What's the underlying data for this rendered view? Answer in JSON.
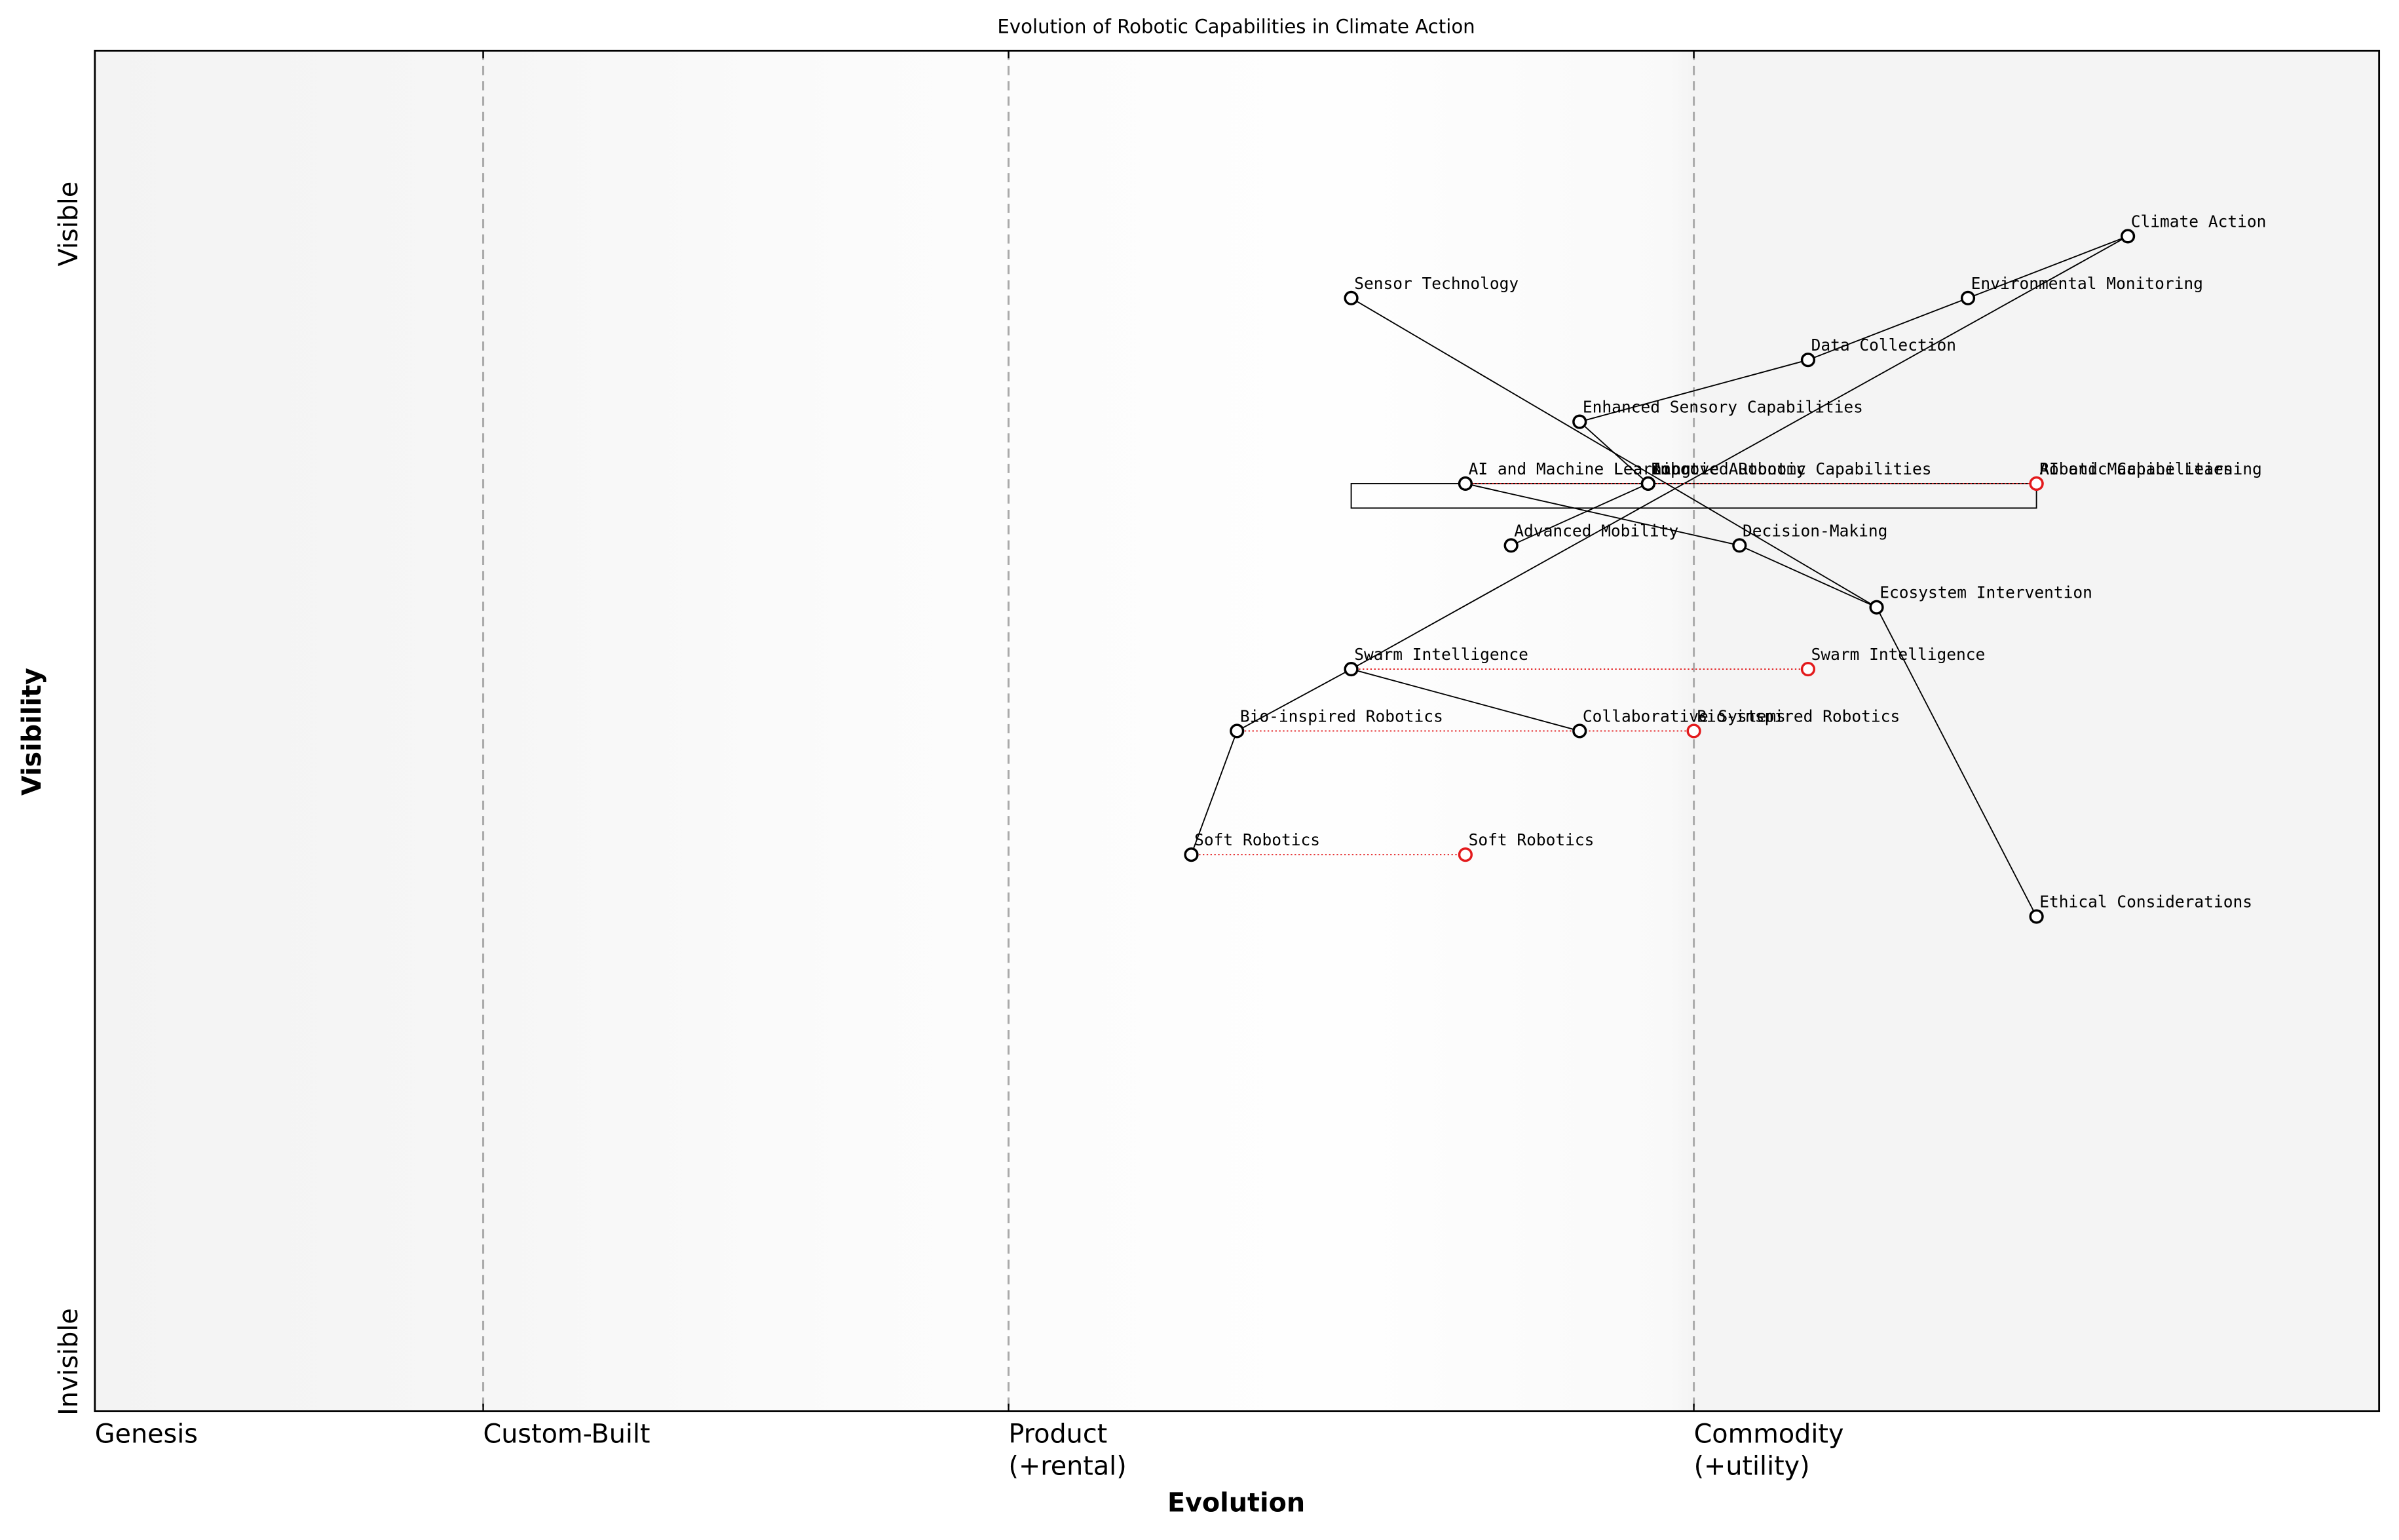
{
  "chart_data": {
    "type": "wardley",
    "title": "Evolution of Robotic Capabilities in Climate Action",
    "x_label": "Evolution",
    "y_label": "Visibility",
    "xlim": [
      0,
      1
    ],
    "ylim": [
      0,
      1.1
    ],
    "xticks": [
      {
        "value": 0,
        "label": [
          "Genesis"
        ]
      },
      {
        "value": 0.17,
        "label": [
          "Custom-Built"
        ]
      },
      {
        "value": 0.4,
        "label": [
          "Product",
          "(+rental)"
        ]
      },
      {
        "value": 0.7,
        "label": [
          "Commodity",
          "(+utility)"
        ]
      }
    ],
    "yticks": [
      {
        "value": 0.04,
        "label": "Invisible"
      },
      {
        "value": 0.96,
        "label": "Visible"
      }
    ],
    "components": [
      {
        "name": "Climate Action",
        "x": 0.89,
        "y": 0.95
      },
      {
        "name": "Environmental Monitoring",
        "x": 0.82,
        "y": 0.9
      },
      {
        "name": "Sensor Technology",
        "x": 0.55,
        "y": 0.9
      },
      {
        "name": "Data Collection",
        "x": 0.75,
        "y": 0.85
      },
      {
        "name": "Enhanced Sensory Capabilities",
        "x": 0.65,
        "y": 0.8
      },
      {
        "name": "AI and Machine Learning",
        "x": 0.6,
        "y": 0.75
      },
      {
        "name": "Improved Robotic Capabilities",
        "x": 0.68,
        "y": 0.75
      },
      {
        "name": "Robotic Autonomy",
        "x": 0.68,
        "y": 0.75
      },
      {
        "name": "Advanced Mobility",
        "x": 0.62,
        "y": 0.7
      },
      {
        "name": "Decision-Making",
        "x": 0.72,
        "y": 0.7
      },
      {
        "name": "Ecosystem Intervention",
        "x": 0.78,
        "y": 0.65
      },
      {
        "name": "Swarm Intelligence",
        "x": 0.55,
        "y": 0.6
      },
      {
        "name": "Bio-inspired Robotics",
        "x": 0.5,
        "y": 0.55
      },
      {
        "name": "Collaborative Systems",
        "x": 0.65,
        "y": 0.55
      },
      {
        "name": "Soft Robotics",
        "x": 0.48,
        "y": 0.45
      },
      {
        "name": "Ethical Considerations",
        "x": 0.85,
        "y": 0.4
      }
    ],
    "links": [
      [
        "Climate Action",
        "Environmental Monitoring"
      ],
      [
        "Climate Action",
        "Swarm Intelligence"
      ],
      [
        "Environmental Monitoring",
        "Data Collection"
      ],
      [
        "Data Collection",
        "Enhanced Sensory Capabilities"
      ],
      [
        "Enhanced Sensory Capabilities",
        "Improved Robotic Capabilities"
      ],
      [
        "Sensor Technology",
        "Ecosystem Intervention"
      ],
      [
        "AI and Machine Learning",
        "Decision-Making"
      ],
      [
        "Advanced Mobility",
        "Robotic Autonomy"
      ],
      [
        "Decision-Making",
        "Ecosystem Intervention"
      ],
      [
        "Ecosystem Intervention",
        "Ethical Considerations"
      ],
      [
        "Swarm Intelligence",
        "Collaborative Systems"
      ],
      [
        "Swarm Intelligence",
        "Bio-inspired Robotics"
      ],
      [
        "Bio-inspired Robotics",
        "Soft Robotics"
      ]
    ],
    "evolutions": [
      {
        "name": "AI and Machine Learning",
        "x": 0.85,
        "y": 0.75
      },
      {
        "name": "Robotic Capabilities",
        "x": 0.85,
        "y": 0.75
      },
      {
        "name": "Swarm Intelligence",
        "x": 0.75,
        "y": 0.6
      },
      {
        "name": "Bio-inspired Robotics",
        "x": 0.7,
        "y": 0.55
      },
      {
        "name": "Soft Robotics",
        "x": 0.6,
        "y": 0.45
      }
    ],
    "pipelines": [
      {
        "name": "Improved Robotic Capabilities",
        "x": [
          0.55,
          0.85
        ],
        "y": 0.75
      }
    ],
    "evolution_color": "#e31a1c",
    "component_color": "#000000"
  }
}
